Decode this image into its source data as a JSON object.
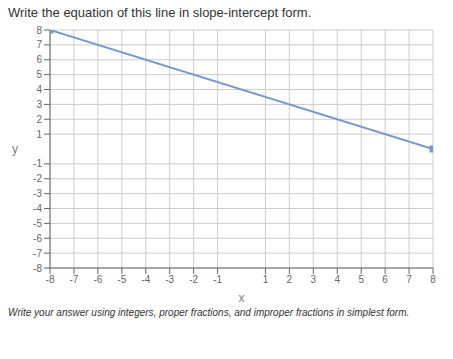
{
  "chart_data": {
    "type": "line",
    "title": "Write the equation of this line in slope-intercept form.",
    "annotations": [
      "Write your answer using integers, proper fractions, and improper fractions in simplest form."
    ],
    "xlabel": "x",
    "ylabel": "y",
    "x": [
      -8,
      8
    ],
    "values": [
      8,
      0
    ],
    "color": "#7799cc",
    "marker": "square",
    "xlim": [
      -8,
      8
    ],
    "ylim": [
      -8,
      8
    ],
    "xticks": [
      -8,
      -7,
      -6,
      -5,
      -4,
      -3,
      -2,
      -1,
      1,
      2,
      3,
      4,
      5,
      6,
      7,
      8
    ],
    "yticks": [
      -8,
      -7,
      -6,
      -5,
      -4,
      -3,
      -2,
      -1,
      1,
      2,
      3,
      4,
      5,
      6,
      7,
      8
    ],
    "grid": true
  }
}
